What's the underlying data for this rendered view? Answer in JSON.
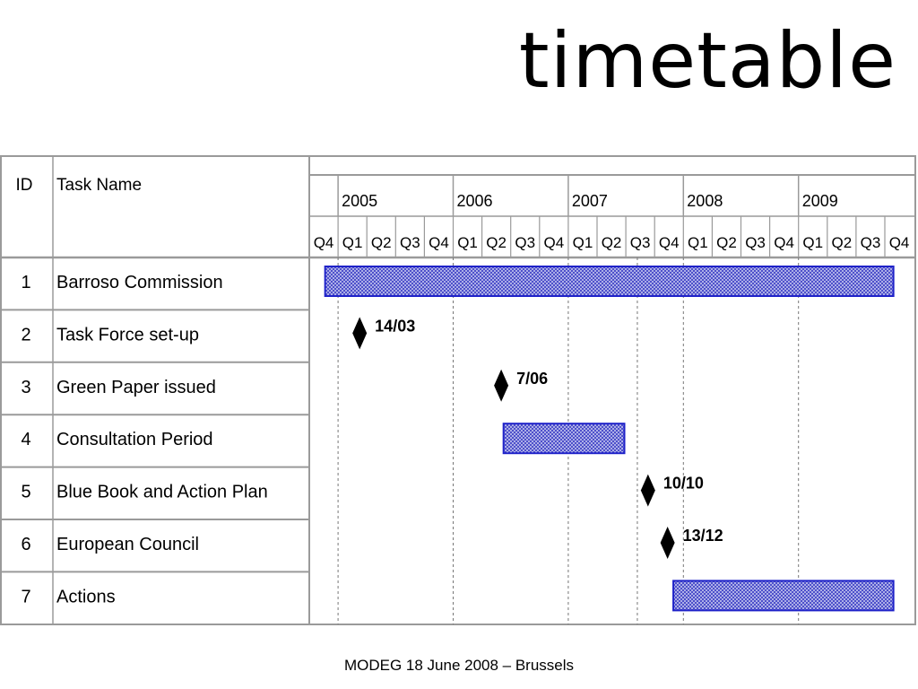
{
  "title": "timetable",
  "footer": "MODEG 18 June 2008 – Brussels",
  "table": {
    "col_id": "ID",
    "col_name": "Task Name",
    "years": [
      "2005",
      "2006",
      "2007",
      "2008",
      "2009"
    ],
    "quarters": [
      "Q4",
      "Q1",
      "Q2",
      "Q3",
      "Q4",
      "Q1",
      "Q2",
      "Q3",
      "Q4",
      "Q1",
      "Q2",
      "Q3",
      "Q4",
      "Q1",
      "Q2",
      "Q3",
      "Q4",
      "Q1",
      "Q2",
      "Q3",
      "Q4"
    ],
    "tasks": [
      {
        "id": "1",
        "name": "Barroso Commission",
        "type": "bar",
        "start_q": 0.55,
        "end_q": 20.3
      },
      {
        "id": "2",
        "name": "Task Force set-up",
        "type": "milestone",
        "at_q": 1.75,
        "label": "14/03"
      },
      {
        "id": "3",
        "name": "Green Paper issued",
        "type": "milestone",
        "at_q": 6.67,
        "label": "7/06"
      },
      {
        "id": "4",
        "name": "Consultation Period",
        "type": "bar",
        "start_q": 6.75,
        "end_q": 10.95
      },
      {
        "id": "5",
        "name": "Blue Book and Action Plan",
        "type": "milestone",
        "at_q": 11.77,
        "label": "10/10"
      },
      {
        "id": "6",
        "name": "European Council",
        "type": "milestone",
        "at_q": 12.45,
        "label": "13/12"
      },
      {
        "id": "7",
        "name": "Actions",
        "type": "bar",
        "start_q": 12.65,
        "end_q": 20.3
      }
    ]
  },
  "colors": {
    "bar_stroke": "#1f22c9",
    "bar_fill": "#8c8fd8",
    "grid": "#a0a0a0",
    "row_line": "#9a9a9a"
  }
}
